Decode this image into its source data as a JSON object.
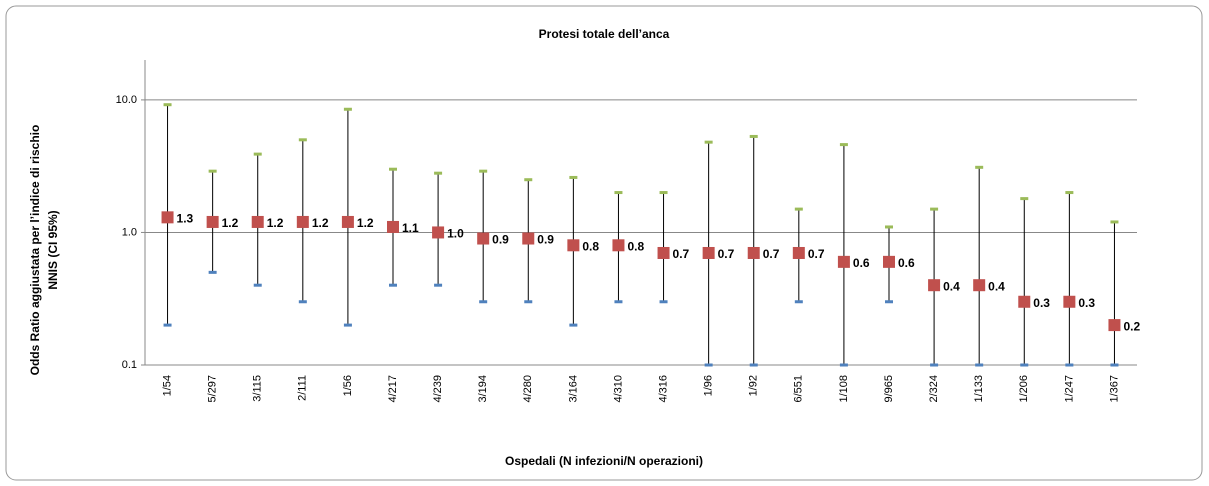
{
  "chart_data": {
    "type": "errorbar",
    "title": "Protesi totale dell’anca",
    "x_label": "Ospedali (N infezioni/N operazioni)",
    "y_label": [
      "Odds Ratio aggiustata per l’indice di rischio",
      "NNIS (CI 95%)"
    ],
    "y_log": true,
    "grid": true,
    "ylim": [
      0.1,
      20
    ],
    "yticks": [
      0.1,
      {
        "value": 1,
        "label": "1.0"
      },
      {
        "value": 10,
        "label": "10.0"
      }
    ],
    "categories": [
      "1/54",
      "5/297",
      "3/115",
      "2/111",
      "1/56",
      "4/217",
      "4/239",
      "3/194",
      "4/280",
      "3/164",
      "4/310",
      "4/316",
      "1/96",
      "1/92",
      "6/551",
      "1/108",
      "9/965",
      "2/324",
      "1/133",
      "1/206",
      "1/247",
      "1/367"
    ],
    "values": [
      1.3,
      1.2,
      1.2,
      1.2,
      1.2,
      1.1,
      1,
      0.9,
      0.9,
      0.8,
      0.8,
      0.7,
      0.7,
      0.7,
      0.7,
      0.6,
      0.6,
      0.4,
      0.4,
      0.3,
      0.3,
      0.2
    ],
    "value_labels": [
      "1.3",
      "1.2",
      "1.2",
      "1.2",
      "1.2",
      "1.1",
      "1.0",
      "0.9",
      "0.9",
      "0.8",
      "0.8",
      "0.7",
      "0.7",
      "0.7",
      "0.7",
      "0.6",
      "0.6",
      "0.4",
      "0.4",
      "0.3",
      "0.3",
      "0.2"
    ],
    "lower": [
      0.2,
      0.5,
      0.4,
      0.3,
      0.2,
      0.4,
      0.4,
      0.3,
      0.3,
      0.2,
      0.3,
      0.3,
      0.1,
      0.1,
      0.3,
      0.1,
      0.3,
      0.1,
      0.1,
      0.1,
      0.1,
      0.1
    ],
    "upper": [
      9.2,
      2.9,
      3.9,
      5.0,
      8.5,
      3.0,
      2.8,
      2.9,
      2.5,
      2.6,
      2.0,
      2.0,
      4.8,
      5.3,
      1.5,
      4.6,
      1.1,
      1.5,
      3.1,
      1.8,
      2.0,
      1.2
    ],
    "color": "#c0504d",
    "lower_color": "#4f81bd",
    "upper_color": "#9bbb59"
  }
}
